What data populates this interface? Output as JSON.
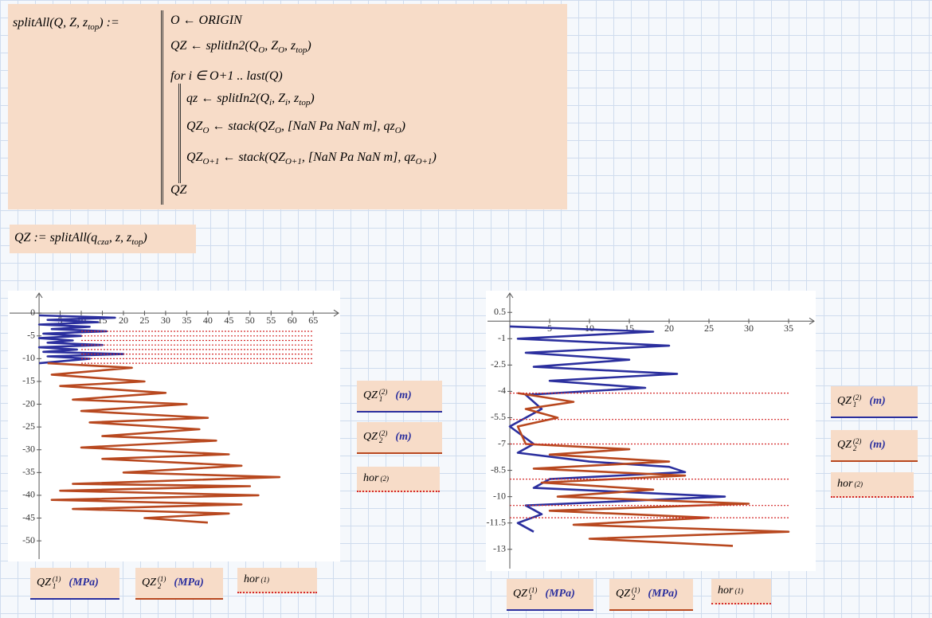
{
  "program": {
    "definition": "splitAll(Q, Z, z_{top}) :=",
    "lines": [
      "O ← ORIGIN",
      "QZ ← splitIn2(Q_{O}, Z_{O}, z_{top})",
      "for i ∈ O+1 .. last(Q)",
      "qz ← splitIn2(Q_{i}, Z_{i}, z_{top})",
      "QZ_{O} ← stack(QZ_{O}, [NaN Pa  NaN m], qz_{O})",
      "QZ_{O+1} ← stack(QZ_{O+1}, [NaN Pa  NaN m], qz_{O+1})",
      "QZ"
    ]
  },
  "assignment": "QZ := splitAll(q_{cza}, z, z_{top})",
  "chart_data": [
    {
      "type": "line",
      "xlim": [
        -7,
        71
      ],
      "ylim": [
        -54,
        4.4
      ],
      "xticks": [
        5,
        10,
        15,
        20,
        25,
        30,
        35,
        40,
        45,
        50,
        55,
        60,
        65
      ],
      "yticks": [
        0,
        -5,
        -10,
        -15,
        -20,
        -25,
        -30,
        -35,
        -40,
        -45,
        -50
      ],
      "series": [
        {
          "x_label": {
            "base": "QZ",
            "sub": "1",
            "sup": "(1)",
            "unit": "(MPa)"
          },
          "y_label": {
            "base": "QZ",
            "sub": "1",
            "sup": "(2)",
            "unit": "(m)"
          },
          "color": "#2b2f9e",
          "line_style": "solid",
          "x": [
            0,
            18,
            2,
            14,
            0,
            12,
            3,
            16,
            1,
            10,
            0,
            8,
            2,
            15,
            0,
            9,
            1,
            20,
            2,
            12,
            0
          ],
          "values": [
            -0.5,
            -1,
            -1.5,
            -2,
            -2.5,
            -3,
            -3.5,
            -4,
            -4.5,
            -5,
            -5.5,
            -6,
            -6.5,
            -7,
            -7.5,
            -8,
            -8.5,
            -9,
            -9.5,
            -10,
            -11
          ]
        },
        {
          "x_label": {
            "base": "QZ",
            "sub": "2",
            "sup": "(1)",
            "unit": "(MPa)"
          },
          "y_label": {
            "base": "QZ",
            "sub": "2",
            "sup": "(2)",
            "unit": "(m)"
          },
          "color": "#b8481f",
          "line_style": "solid",
          "x": [
            2,
            22,
            3,
            25,
            5,
            30,
            8,
            35,
            10,
            40,
            12,
            38,
            15,
            42,
            10,
            45,
            15,
            48,
            20,
            57,
            8,
            50,
            5,
            52,
            3,
            48,
            8,
            45,
            25,
            40
          ],
          "values": [
            -11,
            -12,
            -13.5,
            -15,
            -16,
            -17.5,
            -19,
            -20,
            -21.5,
            -23,
            -24,
            -25.5,
            -27,
            -28,
            -29.5,
            -31,
            -32,
            -33.5,
            -35,
            -36,
            -37.5,
            -38,
            -39,
            -40,
            -41,
            -42,
            -43,
            -44,
            -45,
            -46
          ]
        },
        {
          "x_label": {
            "base": "hor",
            "sup": "(1)"
          },
          "y_label": {
            "base": "hor",
            "sup": "(2)"
          },
          "color": "#d42a2a",
          "line_style": "dotted",
          "x": [
            10,
            65,
            null,
            10,
            65,
            null,
            10,
            65,
            null,
            10,
            65,
            null,
            10,
            65,
            null,
            10,
            65,
            null,
            10,
            65,
            null,
            10,
            65
          ],
          "values": [
            -4,
            -4,
            null,
            -5,
            -5,
            null,
            -6,
            -6,
            null,
            -7,
            -7,
            null,
            -8,
            -8,
            null,
            -9,
            -9,
            null,
            -10,
            -10,
            null,
            -11,
            -11
          ]
        }
      ]
    },
    {
      "type": "line",
      "xlim": [
        -2.8,
        38.2
      ],
      "ylim": [
        -14.1,
        1.6
      ],
      "xticks": [
        5,
        10,
        15,
        20,
        25,
        30,
        35
      ],
      "yticks": [
        0.5,
        -1,
        -2.5,
        -4,
        -5.5,
        -7,
        -8.5,
        -10,
        -11.5,
        -13
      ],
      "series": [
        {
          "x_label": {
            "base": "QZ",
            "sub": "1",
            "sup": "(1)",
            "unit": "(MPa)"
          },
          "y_label": {
            "base": "QZ",
            "sub": "1",
            "sup": "(2)",
            "unit": "(m)"
          },
          "color": "#2b2f9e",
          "line_style": "solid",
          "x": [
            0,
            18,
            1,
            20,
            2,
            15,
            3,
            21,
            5,
            17,
            2,
            4,
            0,
            3,
            1,
            10,
            20,
            22,
            5,
            3,
            27,
            2,
            4,
            1,
            3
          ],
          "values": [
            -0.3,
            -0.6,
            -1,
            -1.4,
            -1.8,
            -2.2,
            -2.6,
            -3,
            -3.4,
            -3.8,
            -4.2,
            -5,
            -6,
            -7,
            -7.5,
            -8,
            -8.3,
            -8.6,
            -9,
            -9.5,
            -10,
            -10.5,
            -11,
            -11.5,
            -12
          ]
        },
        {
          "x_label": {
            "base": "QZ",
            "sub": "2",
            "sup": "(1)",
            "unit": "(MPa)"
          },
          "y_label": {
            "base": "QZ",
            "sub": "2",
            "sup": "(2)",
            "unit": "(m)"
          },
          "color": "#b8481f",
          "line_style": "solid",
          "x": [
            1,
            8,
            2,
            6,
            1,
            2,
            15,
            5,
            20,
            3,
            22,
            4,
            18,
            6,
            30,
            5,
            25,
            8,
            35,
            10,
            28
          ],
          "values": [
            -4.1,
            -4.6,
            -5,
            -5.5,
            -6,
            -7,
            -7.3,
            -7.6,
            -8,
            -8.4,
            -8.8,
            -9.2,
            -9.6,
            -10,
            -10.4,
            -10.8,
            -11.2,
            -11.6,
            -12,
            -12.4,
            -12.8
          ]
        },
        {
          "x_label": {
            "base": "hor",
            "sup": "(1)"
          },
          "y_label": {
            "base": "hor",
            "sup": "(2)"
          },
          "color": "#d42a2a",
          "line_style": "dotted",
          "x": [
            0,
            35,
            null,
            0,
            35,
            null,
            0,
            35,
            null,
            0,
            35,
            null,
            0,
            35,
            null,
            0,
            35
          ],
          "values": [
            -4.1,
            -4.1,
            null,
            -5.6,
            -5.6,
            null,
            -7,
            -7,
            null,
            -9,
            -9,
            null,
            -10.5,
            -10.5,
            null,
            -11.2,
            -11.2
          ]
        }
      ]
    }
  ]
}
